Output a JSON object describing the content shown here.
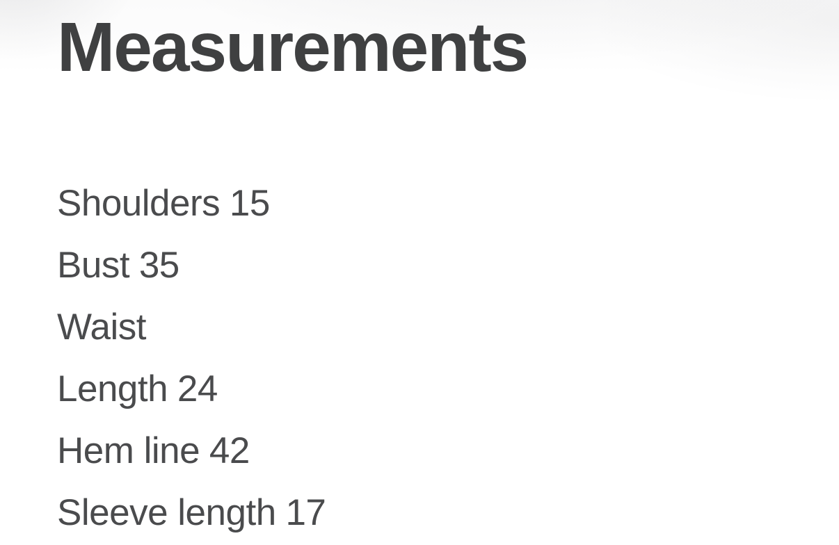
{
  "section": {
    "title": "Measurements",
    "measurements": [
      {
        "label": "Shoulders",
        "value": "15"
      },
      {
        "label": "Bust",
        "value": "35"
      },
      {
        "label": "Waist",
        "value": ""
      },
      {
        "label": "Length",
        "value": "24"
      },
      {
        "label": "Hem line",
        "value": "42"
      },
      {
        "label": "Sleeve length",
        "value": "17"
      }
    ]
  },
  "colors": {
    "heading_text": "#3f4041",
    "body_text": "#4a4b4d",
    "background": "#ffffff"
  }
}
